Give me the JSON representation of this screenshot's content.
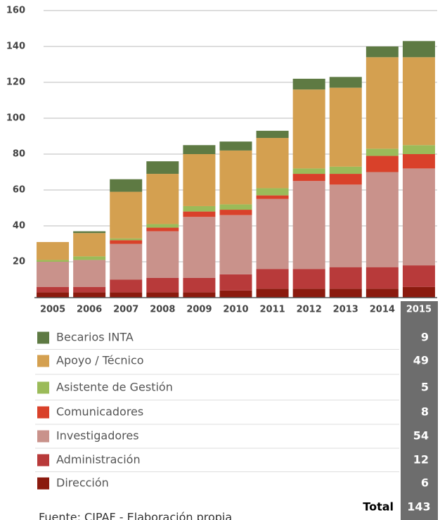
{
  "chart_data": {
    "type": "stacked_bar",
    "categories": [
      "2005",
      "2006",
      "2007",
      "2008",
      "2009",
      "2010",
      "2011",
      "2012",
      "2013",
      "2014",
      "2015"
    ],
    "series": [
      {
        "name": "Dirección",
        "color": "#8b1a0e",
        "values": [
          3,
          3,
          3,
          3,
          3,
          4,
          5,
          5,
          5,
          5,
          6
        ]
      },
      {
        "name": "Administración",
        "color": "#b83a3a",
        "values": [
          3,
          3,
          7,
          8,
          8,
          9,
          11,
          11,
          12,
          12,
          12
        ]
      },
      {
        "name": "Investigadores",
        "color": "#c9928b",
        "values": [
          14,
          15,
          20,
          26,
          34,
          33,
          39,
          49,
          46,
          53,
          54
        ]
      },
      {
        "name": "Comunicadores",
        "color": "#d9412a",
        "values": [
          0,
          0,
          2,
          2,
          3,
          3,
          2,
          4,
          6,
          9,
          8
        ]
      },
      {
        "name": "Asistente de Gestión",
        "color": "#9bbb59",
        "values": [
          1,
          2,
          1,
          2,
          3,
          3,
          4,
          3,
          4,
          4,
          5
        ]
      },
      {
        "name": "Apoyo / Técnico",
        "color": "#d4a050",
        "values": [
          10,
          13,
          26,
          28,
          29,
          30,
          28,
          44,
          44,
          51,
          49
        ]
      },
      {
        "name": "Becarios INTA",
        "color": "#5e7a43",
        "values": [
          0,
          1,
          7,
          7,
          5,
          5,
          4,
          6,
          6,
          6,
          9
        ]
      }
    ],
    "ylim": [
      0,
      160
    ],
    "yticks": [
      20,
      40,
      60,
      80,
      100,
      120,
      140,
      160
    ],
    "grid": true,
    "total_label": "Total",
    "total": 143,
    "source": "Fuente: CIPAF - Elaboración propia"
  }
}
